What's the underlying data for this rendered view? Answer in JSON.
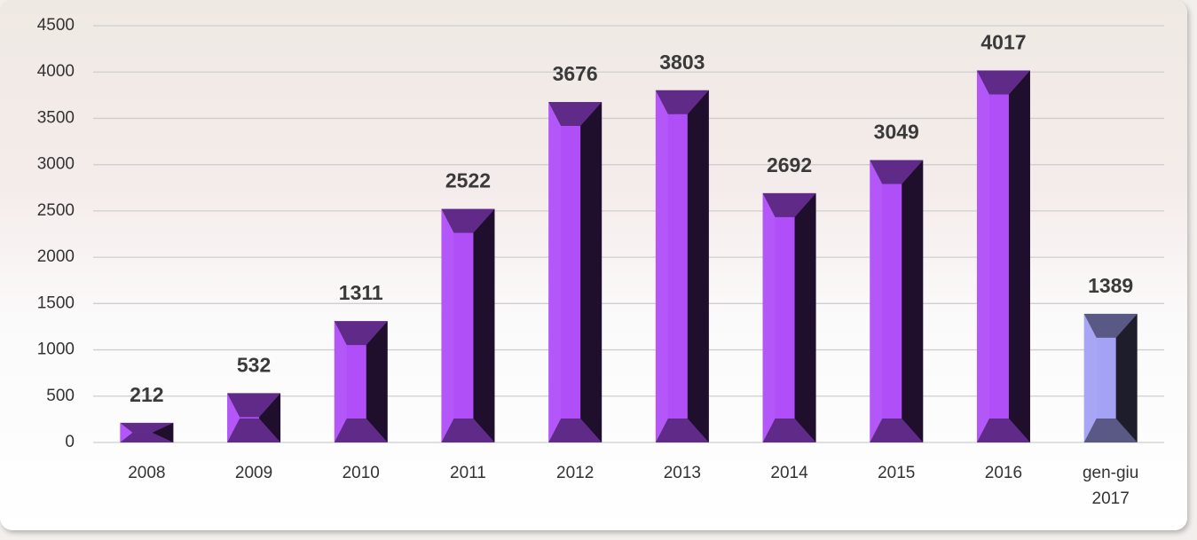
{
  "chart_data": {
    "type": "bar",
    "categories": [
      "2008",
      "2009",
      "2010",
      "2011",
      "2012",
      "2013",
      "2014",
      "2015",
      "2016",
      "gen-giu 2017"
    ],
    "values": [
      212,
      532,
      1311,
      2522,
      3676,
      3803,
      2692,
      3049,
      4017,
      1389
    ],
    "colors": [
      "#b04ef8",
      "#b04ef8",
      "#b04ef8",
      "#b04ef8",
      "#b04ef8",
      "#b04ef8",
      "#b04ef8",
      "#b04ef8",
      "#b04ef8",
      "#a4a2f4"
    ],
    "ylim": [
      0,
      4500
    ],
    "yticks": [
      0,
      500,
      1000,
      1500,
      2000,
      2500,
      3000,
      3500,
      4000,
      4500
    ],
    "grid": true
  }
}
